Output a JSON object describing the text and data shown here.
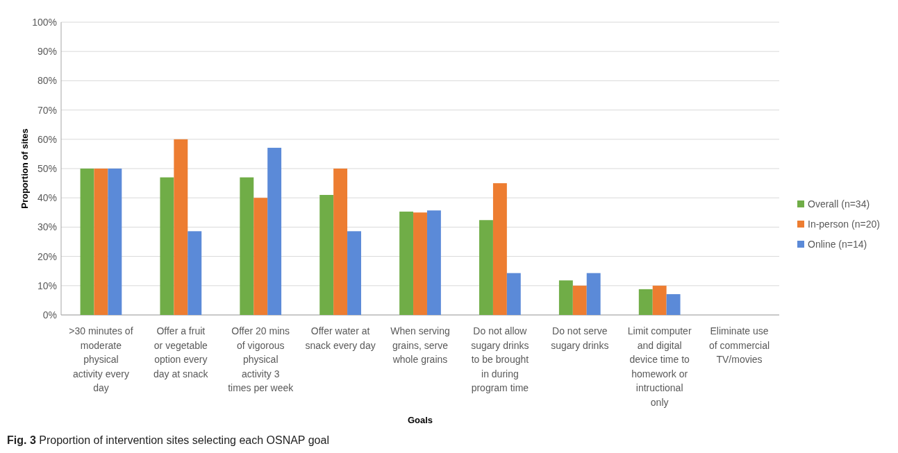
{
  "chart_data": {
    "type": "bar",
    "xlabel": "Goals",
    "ylabel": "Proportion of sites",
    "categories": [
      ">30 minutes of moderate physical activity every day",
      "Offer a fruit or vegetable option every day at snack",
      "Offer 20 mins of vigorous physical activity 3 times per week",
      "Offer water at snack every day",
      "When serving grains, serve whole grains",
      "Do not allow sugary drinks to be brought in during program time",
      "Do not serve sugary drinks",
      "Limit computer and digital device time to homework or intructional only",
      "Eliminate use of commercial TV/movies"
    ],
    "series": [
      {
        "name": "Overall (n=34)",
        "color": "#70ad47",
        "values": [
          50,
          47,
          47,
          41,
          35.3,
          32.4,
          11.8,
          8.8,
          0
        ]
      },
      {
        "name": "In-person (n=20)",
        "color": "#ed7d31",
        "values": [
          50,
          60,
          40,
          50,
          35,
          45,
          10,
          10,
          0
        ]
      },
      {
        "name": "Online (n=14)",
        "color": "#5b8ad8",
        "values": [
          50,
          28.6,
          57.1,
          28.6,
          35.7,
          14.3,
          14.3,
          7.1,
          0
        ]
      }
    ],
    "ylim": [
      0,
      100
    ],
    "yticks": [
      {
        "value": 0,
        "label": "0%"
      },
      {
        "value": 10,
        "label": "10%"
      },
      {
        "value": 20,
        "label": "20%"
      },
      {
        "value": 30,
        "label": "30%"
      },
      {
        "value": 40,
        "label": "40%"
      },
      {
        "value": 50,
        "label": "50%"
      },
      {
        "value": 60,
        "label": "60%"
      },
      {
        "value": 70,
        "label": "70%"
      },
      {
        "value": 80,
        "label": "80%"
      },
      {
        "value": 90,
        "label": "90%"
      },
      {
        "value": 100,
        "label": "100%"
      }
    ],
    "grid": "y",
    "legend": "right",
    "annotations": [
      "Fig. 3 Proportion of intervention sites selecting each OSNAP goal"
    ]
  }
}
